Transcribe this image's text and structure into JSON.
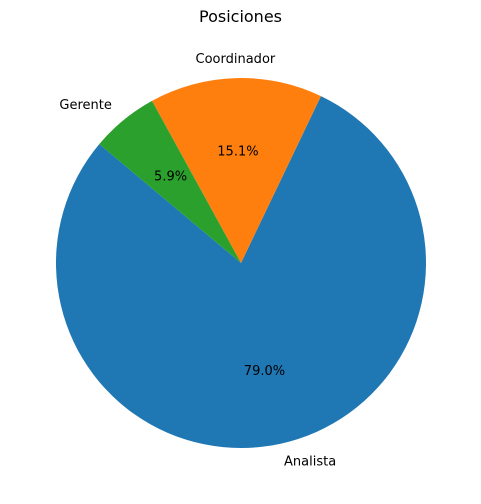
{
  "chart_data": {
    "type": "pie",
    "title": "Posiciones",
    "slices": [
      {
        "label": "Analista",
        "value": 79.0,
        "pct_label": "79.0%",
        "color": "#1f77b4"
      },
      {
        "label": "Coordinador",
        "value": 15.1,
        "pct_label": "15.1%",
        "color": "#ff7f0e"
      },
      {
        "label": "Gerente",
        "value": 5.9,
        "pct_label": "5.9%",
        "color": "#2ca02c"
      }
    ],
    "start_angle_deg": 140,
    "direction": "counterclockwise"
  }
}
